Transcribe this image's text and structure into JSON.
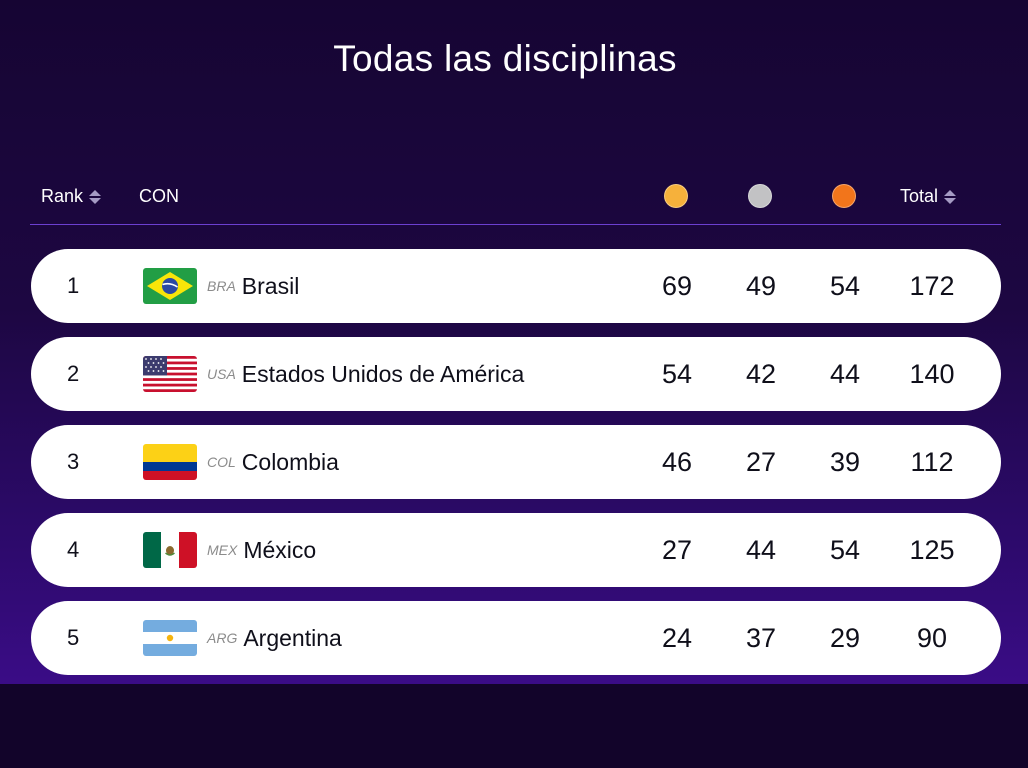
{
  "header": {
    "title": "Todas las disciplinas"
  },
  "table": {
    "columns": {
      "rank": "Rank",
      "con": "CON",
      "total": "Total",
      "gold_icon": "gold-medal",
      "silver_icon": "silver-medal",
      "bronze_icon": "bronze-medal"
    },
    "colors": {
      "gold": "#f6b13b",
      "silver": "#c2c2c4",
      "bronze": "#f2751b"
    },
    "rows": [
      {
        "rank": "1",
        "code": "BRA",
        "country": "Brasil",
        "gold": "69",
        "silver": "49",
        "bronze": "54",
        "total": "172"
      },
      {
        "rank": "2",
        "code": "USA",
        "country": "Estados Unidos de América",
        "gold": "54",
        "silver": "42",
        "bronze": "44",
        "total": "140"
      },
      {
        "rank": "3",
        "code": "COL",
        "country": "Colombia",
        "gold": "46",
        "silver": "27",
        "bronze": "39",
        "total": "112"
      },
      {
        "rank": "4",
        "code": "MEX",
        "country": "México",
        "gold": "27",
        "silver": "44",
        "bronze": "54",
        "total": "125"
      },
      {
        "rank": "5",
        "code": "ARG",
        "country": "Argentina",
        "gold": "24",
        "silver": "37",
        "bronze": "29",
        "total": "90"
      }
    ]
  }
}
